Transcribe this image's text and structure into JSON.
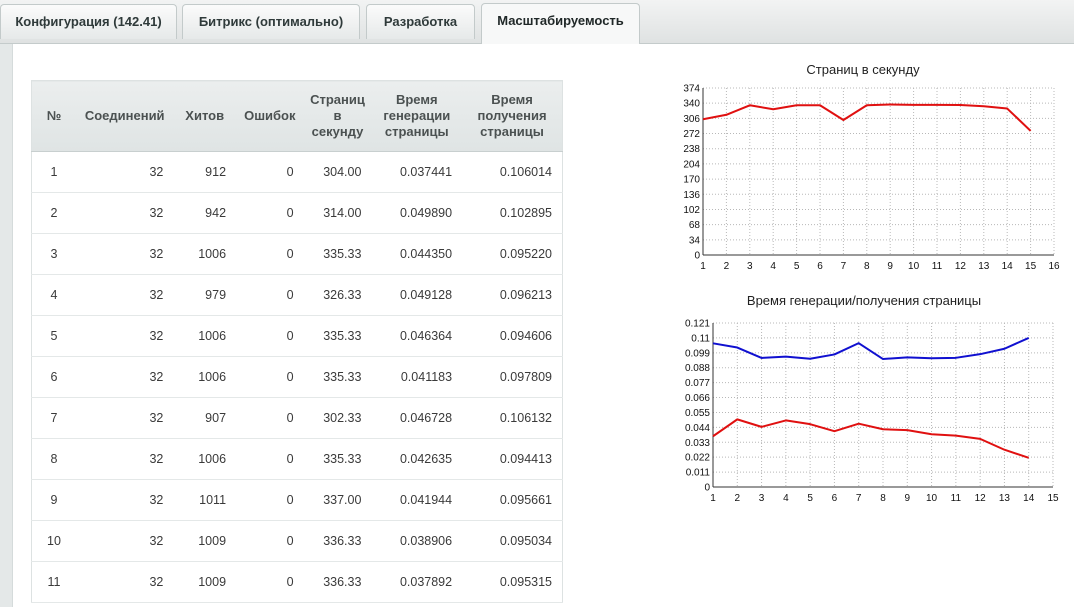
{
  "tabs": [
    {
      "label": "Конфигурация (142.41)",
      "active": false
    },
    {
      "label": "Битрикс (оптимально)",
      "active": false
    },
    {
      "label": "Разработка",
      "active": false
    },
    {
      "label": "Масштабируемость",
      "active": true
    }
  ],
  "table": {
    "headers": [
      "№",
      "Соединений",
      "Хитов",
      "Ошибок",
      "Страниц в секунду",
      "Время генерации страницы",
      "Время получения страницы"
    ],
    "rows": [
      [
        "1",
        "32",
        "912",
        "0",
        "304.00",
        "0.037441",
        "0.106014"
      ],
      [
        "2",
        "32",
        "942",
        "0",
        "314.00",
        "0.049890",
        "0.102895"
      ],
      [
        "3",
        "32",
        "1006",
        "0",
        "335.33",
        "0.044350",
        "0.095220"
      ],
      [
        "4",
        "32",
        "979",
        "0",
        "326.33",
        "0.049128",
        "0.096213"
      ],
      [
        "5",
        "32",
        "1006",
        "0",
        "335.33",
        "0.046364",
        "0.094606"
      ],
      [
        "6",
        "32",
        "1006",
        "0",
        "335.33",
        "0.041183",
        "0.097809"
      ],
      [
        "7",
        "32",
        "907",
        "0",
        "302.33",
        "0.046728",
        "0.106132"
      ],
      [
        "8",
        "32",
        "1006",
        "0",
        "335.33",
        "0.042635",
        "0.094413"
      ],
      [
        "9",
        "32",
        "1011",
        "0",
        "337.00",
        "0.041944",
        "0.095661"
      ],
      [
        "10",
        "32",
        "1009",
        "0",
        "336.33",
        "0.038906",
        "0.095034"
      ],
      [
        "11",
        "32",
        "1009",
        "0",
        "336.33",
        "0.037892",
        "0.095315"
      ]
    ]
  },
  "chart_data": [
    {
      "type": "line",
      "title": "Страниц в секунду",
      "x": [
        1,
        2,
        3,
        4,
        5,
        6,
        7,
        8,
        9,
        10,
        11,
        12,
        13,
        14,
        15
      ],
      "xticks": [
        "1",
        "2",
        "3",
        "4",
        "5",
        "6",
        "7",
        "8",
        "9",
        "10",
        "11",
        "12",
        "13",
        "14",
        "15",
        "16"
      ],
      "xlim": [
        1,
        16
      ],
      "yticks": [
        "0",
        "34",
        "68",
        "102",
        "136",
        "170",
        "204",
        "238",
        "272",
        "306",
        "340",
        "374"
      ],
      "ylim": [
        0,
        374
      ],
      "grid": true,
      "series": [
        {
          "color": "#e01010",
          "values": [
            304,
            314,
            335.33,
            326.33,
            335.33,
            335.33,
            302.33,
            335.33,
            337,
            336.33,
            336.33,
            336,
            333,
            328,
            278
          ]
        }
      ]
    },
    {
      "type": "line",
      "title": "Время генерации/получения страницы",
      "x": [
        1,
        2,
        3,
        4,
        5,
        6,
        7,
        8,
        9,
        10,
        11,
        12,
        13,
        14
      ],
      "xticks": [
        "1",
        "2",
        "3",
        "4",
        "5",
        "6",
        "7",
        "8",
        "9",
        "10",
        "11",
        "12",
        "13",
        "14",
        "15"
      ],
      "xlim": [
        1,
        15
      ],
      "yticks": [
        "0",
        "0.011",
        "0.022",
        "0.033",
        "0.044",
        "0.055",
        "0.066",
        "0.077",
        "0.088",
        "0.099",
        "0.11",
        "0.121"
      ],
      "ylim": [
        0,
        0.121
      ],
      "grid": true,
      "series": [
        {
          "color": "#1010d0",
          "values": [
            0.106014,
            0.102895,
            0.09522,
            0.096213,
            0.094606,
            0.097809,
            0.106132,
            0.094413,
            0.095661,
            0.095034,
            0.095315,
            0.098,
            0.102,
            0.11
          ]
        },
        {
          "color": "#e01010",
          "values": [
            0.037441,
            0.04989,
            0.04435,
            0.049128,
            0.046364,
            0.041183,
            0.046728,
            0.042635,
            0.041944,
            0.038906,
            0.037892,
            0.0355,
            0.0275,
            0.0215
          ]
        }
      ]
    }
  ]
}
